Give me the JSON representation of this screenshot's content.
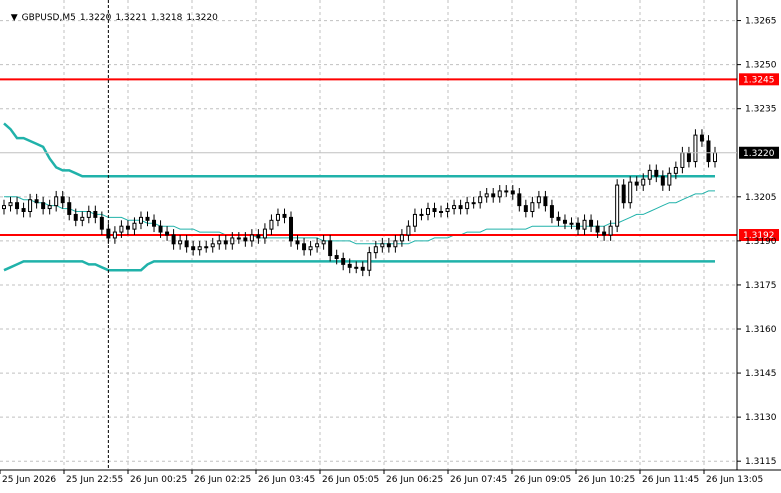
{
  "header": {
    "symbol": "GBPUSD,M5",
    "open": "1.3220",
    "high": "1.3221",
    "low": "1.3218",
    "close": "1.3220"
  },
  "colors": {
    "background": "#ffffff",
    "grid": "#c0c0c0",
    "axis": "#000000",
    "candle": "#000000",
    "bollinger": "#20b2aa",
    "level_line": "#ff0000",
    "level_label_bg": "#ff0000",
    "price_label_bg": "#000000"
  },
  "chart_data": {
    "type": "candlestick",
    "symbol": "GBPUSD",
    "timeframe": "M5",
    "ylim": [
      1.3112,
      1.3272
    ],
    "y_ticks": [
      "1.3265",
      "1.3250",
      "1.3235",
      "1.3205",
      "1.3190",
      "1.3175",
      "1.3160",
      "1.3145",
      "1.3130",
      "1.3115"
    ],
    "x_ticks": [
      "25 Jun 2026",
      "25 Jun 22:55",
      "26 Jun 00:25",
      "26 Jun 02:25",
      "26 Jun 03:45",
      "26 Jun 05:05",
      "26 Jun 06:25",
      "26 Jun 07:45",
      "26 Jun 09:05",
      "26 Jun 10:25",
      "26 Jun 11:45",
      "26 Jun 13:05"
    ],
    "bar_count": 110,
    "grid": true,
    "current_price": "1.3220",
    "levels": [
      {
        "value": 1.3245,
        "label": "1.3245"
      },
      {
        "value": 1.3192,
        "label": "1.3192"
      }
    ],
    "crosshair_bar_index": 16,
    "closes": [
      1.3202,
      1.3203,
      1.3201,
      1.32,
      1.3204,
      1.3203,
      1.3201,
      1.3202,
      1.3205,
      1.3203,
      1.3199,
      1.3197,
      1.3198,
      1.32,
      1.3198,
      1.3194,
      1.3191,
      1.3193,
      1.3195,
      1.3194,
      1.3196,
      1.3198,
      1.3197,
      1.3195,
      1.3193,
      1.3192,
      1.3189,
      1.319,
      1.3188,
      1.3187,
      1.3188,
      1.3188,
      1.3189,
      1.319,
      1.3189,
      1.3191,
      1.3191,
      1.319,
      1.3192,
      1.3191,
      1.3194,
      1.3197,
      1.3199,
      1.3198,
      1.319,
      1.3189,
      1.3187,
      1.3188,
      1.3189,
      1.319,
      1.3185,
      1.3184,
      1.3182,
      1.3181,
      1.3181,
      1.318,
      1.3186,
      1.3188,
      1.3189,
      1.3188,
      1.319,
      1.3192,
      1.3195,
      1.3199,
      1.3199,
      1.3201,
      1.32,
      1.32,
      1.3201,
      1.3202,
      1.3201,
      1.3203,
      1.3203,
      1.3205,
      1.3206,
      1.3205,
      1.3207,
      1.3207,
      1.3206,
      1.3202,
      1.32,
      1.3203,
      1.3205,
      1.3202,
      1.3198,
      1.3197,
      1.3196,
      1.3196,
      1.3194,
      1.3197,
      1.3195,
      1.3193,
      1.3192,
      1.3195,
      1.3209,
      1.3203,
      1.321,
      1.3209,
      1.3211,
      1.3214,
      1.3212,
      1.3209,
      1.3213,
      1.3215,
      1.322,
      1.3217,
      1.3226,
      1.3224,
      1.3217,
      1.322
    ],
    "bollinger_upper": [
      1.323,
      1.3228,
      1.3225,
      1.3225,
      1.3224,
      1.3223,
      1.3222,
      1.3218,
      1.3215,
      1.3214,
      1.3214,
      1.3213,
      1.3212,
      1.3212,
      1.3212,
      1.3212,
      1.3212,
      1.3212,
      1.3212,
      1.3212,
      1.3212,
      1.3212,
      1.3212,
      1.3212,
      1.3212,
      1.3212,
      1.3212,
      1.3212,
      1.3212,
      1.3212,
      1.3212,
      1.3212,
      1.3212,
      1.3212,
      1.3212,
      1.3212,
      1.3212,
      1.3212,
      1.3212,
      1.3212,
      1.3212,
      1.3212,
      1.3212,
      1.3212,
      1.3212,
      1.3212,
      1.3212,
      1.3212,
      1.3212,
      1.3212,
      1.3212,
      1.3212,
      1.3212,
      1.3212,
      1.3212,
      1.3212,
      1.3212,
      1.3212,
      1.3212,
      1.3212,
      1.3212,
      1.3212,
      1.3212,
      1.3212,
      1.3212,
      1.3212,
      1.3212,
      1.3212,
      1.3212,
      1.3212,
      1.3212,
      1.3212,
      1.3212,
      1.3212,
      1.3212,
      1.3212,
      1.3212,
      1.3212,
      1.3212,
      1.3212,
      1.3212,
      1.3212,
      1.3212,
      1.3212,
      1.3212,
      1.3212,
      1.3212,
      1.3212,
      1.3212,
      1.3212,
      1.3212,
      1.3212,
      1.3212,
      1.3212,
      1.3212,
      1.3212,
      1.3212,
      1.3212,
      1.3212,
      1.3212,
      1.3212,
      1.3212,
      1.3212,
      1.3212,
      1.3212,
      1.3212,
      1.3212,
      1.3212,
      1.3212,
      1.3212
    ],
    "bollinger_mid": [
      1.3205,
      1.3205,
      1.3205,
      1.3204,
      1.3204,
      1.3203,
      1.3203,
      1.3202,
      1.3202,
      1.3201,
      1.3201,
      1.32,
      1.32,
      1.32,
      1.3199,
      1.3199,
      1.3198,
      1.3198,
      1.3198,
      1.3197,
      1.3197,
      1.3197,
      1.3196,
      1.3196,
      1.3195,
      1.3195,
      1.3195,
      1.3194,
      1.3194,
      1.3194,
      1.3193,
      1.3193,
      1.3193,
      1.3193,
      1.3192,
      1.3192,
      1.3192,
      1.3192,
      1.3192,
      1.3191,
      1.3191,
      1.3191,
      1.3191,
      1.3191,
      1.3191,
      1.3191,
      1.3191,
      1.3191,
      1.3191,
      1.319,
      1.319,
      1.319,
      1.319,
      1.319,
      1.3189,
      1.3189,
      1.3189,
      1.3189,
      1.3189,
      1.3189,
      1.3189,
      1.3189,
      1.3189,
      1.319,
      1.319,
      1.319,
      1.3191,
      1.3191,
      1.3191,
      1.3192,
      1.3192,
      1.3193,
      1.3193,
      1.3193,
      1.3194,
      1.3194,
      1.3194,
      1.3194,
      1.3194,
      1.3194,
      1.3194,
      1.3195,
      1.3195,
      1.3195,
      1.3195,
      1.3195,
      1.3195,
      1.3195,
      1.3195,
      1.3195,
      1.3195,
      1.3195,
      1.3195,
      1.3196,
      1.3196,
      1.3197,
      1.3198,
      1.3199,
      1.3199,
      1.32,
      1.3201,
      1.3202,
      1.3203,
      1.3203,
      1.3204,
      1.3205,
      1.3206,
      1.3206,
      1.3207,
      1.3207
    ],
    "bollinger_lower": [
      1.318,
      1.3181,
      1.3182,
      1.3183,
      1.3183,
      1.3183,
      1.3183,
      1.3183,
      1.3183,
      1.3183,
      1.3183,
      1.3183,
      1.3183,
      1.3182,
      1.3182,
      1.3181,
      1.318,
      1.318,
      1.318,
      1.318,
      1.318,
      1.318,
      1.3182,
      1.3183,
      1.3183,
      1.3183,
      1.3183,
      1.3183,
      1.3183,
      1.3183,
      1.3183,
      1.3183,
      1.3183,
      1.3183,
      1.3183,
      1.3183,
      1.3183,
      1.3183,
      1.3183,
      1.3183,
      1.3183,
      1.3183,
      1.3183,
      1.3183,
      1.3183,
      1.3183,
      1.3183,
      1.3183,
      1.3183,
      1.3183,
      1.3183,
      1.3183,
      1.3183,
      1.3183,
      1.3183,
      1.3183,
      1.3183,
      1.3183,
      1.3183,
      1.3183,
      1.3183,
      1.3183,
      1.3183,
      1.3183,
      1.3183,
      1.3183,
      1.3183,
      1.3183,
      1.3183,
      1.3183,
      1.3183,
      1.3183,
      1.3183,
      1.3183,
      1.3183,
      1.3183,
      1.3183,
      1.3183,
      1.3183,
      1.3183,
      1.3183,
      1.3183,
      1.3183,
      1.3183,
      1.3183,
      1.3183,
      1.3183,
      1.3183,
      1.3183,
      1.3183,
      1.3183,
      1.3183,
      1.3183,
      1.3183,
      1.3183,
      1.3183,
      1.3183,
      1.3183,
      1.3183,
      1.3183,
      1.3183,
      1.3183,
      1.3183,
      1.3183,
      1.3183,
      1.3183,
      1.3183,
      1.3183,
      1.3183,
      1.3183
    ]
  }
}
